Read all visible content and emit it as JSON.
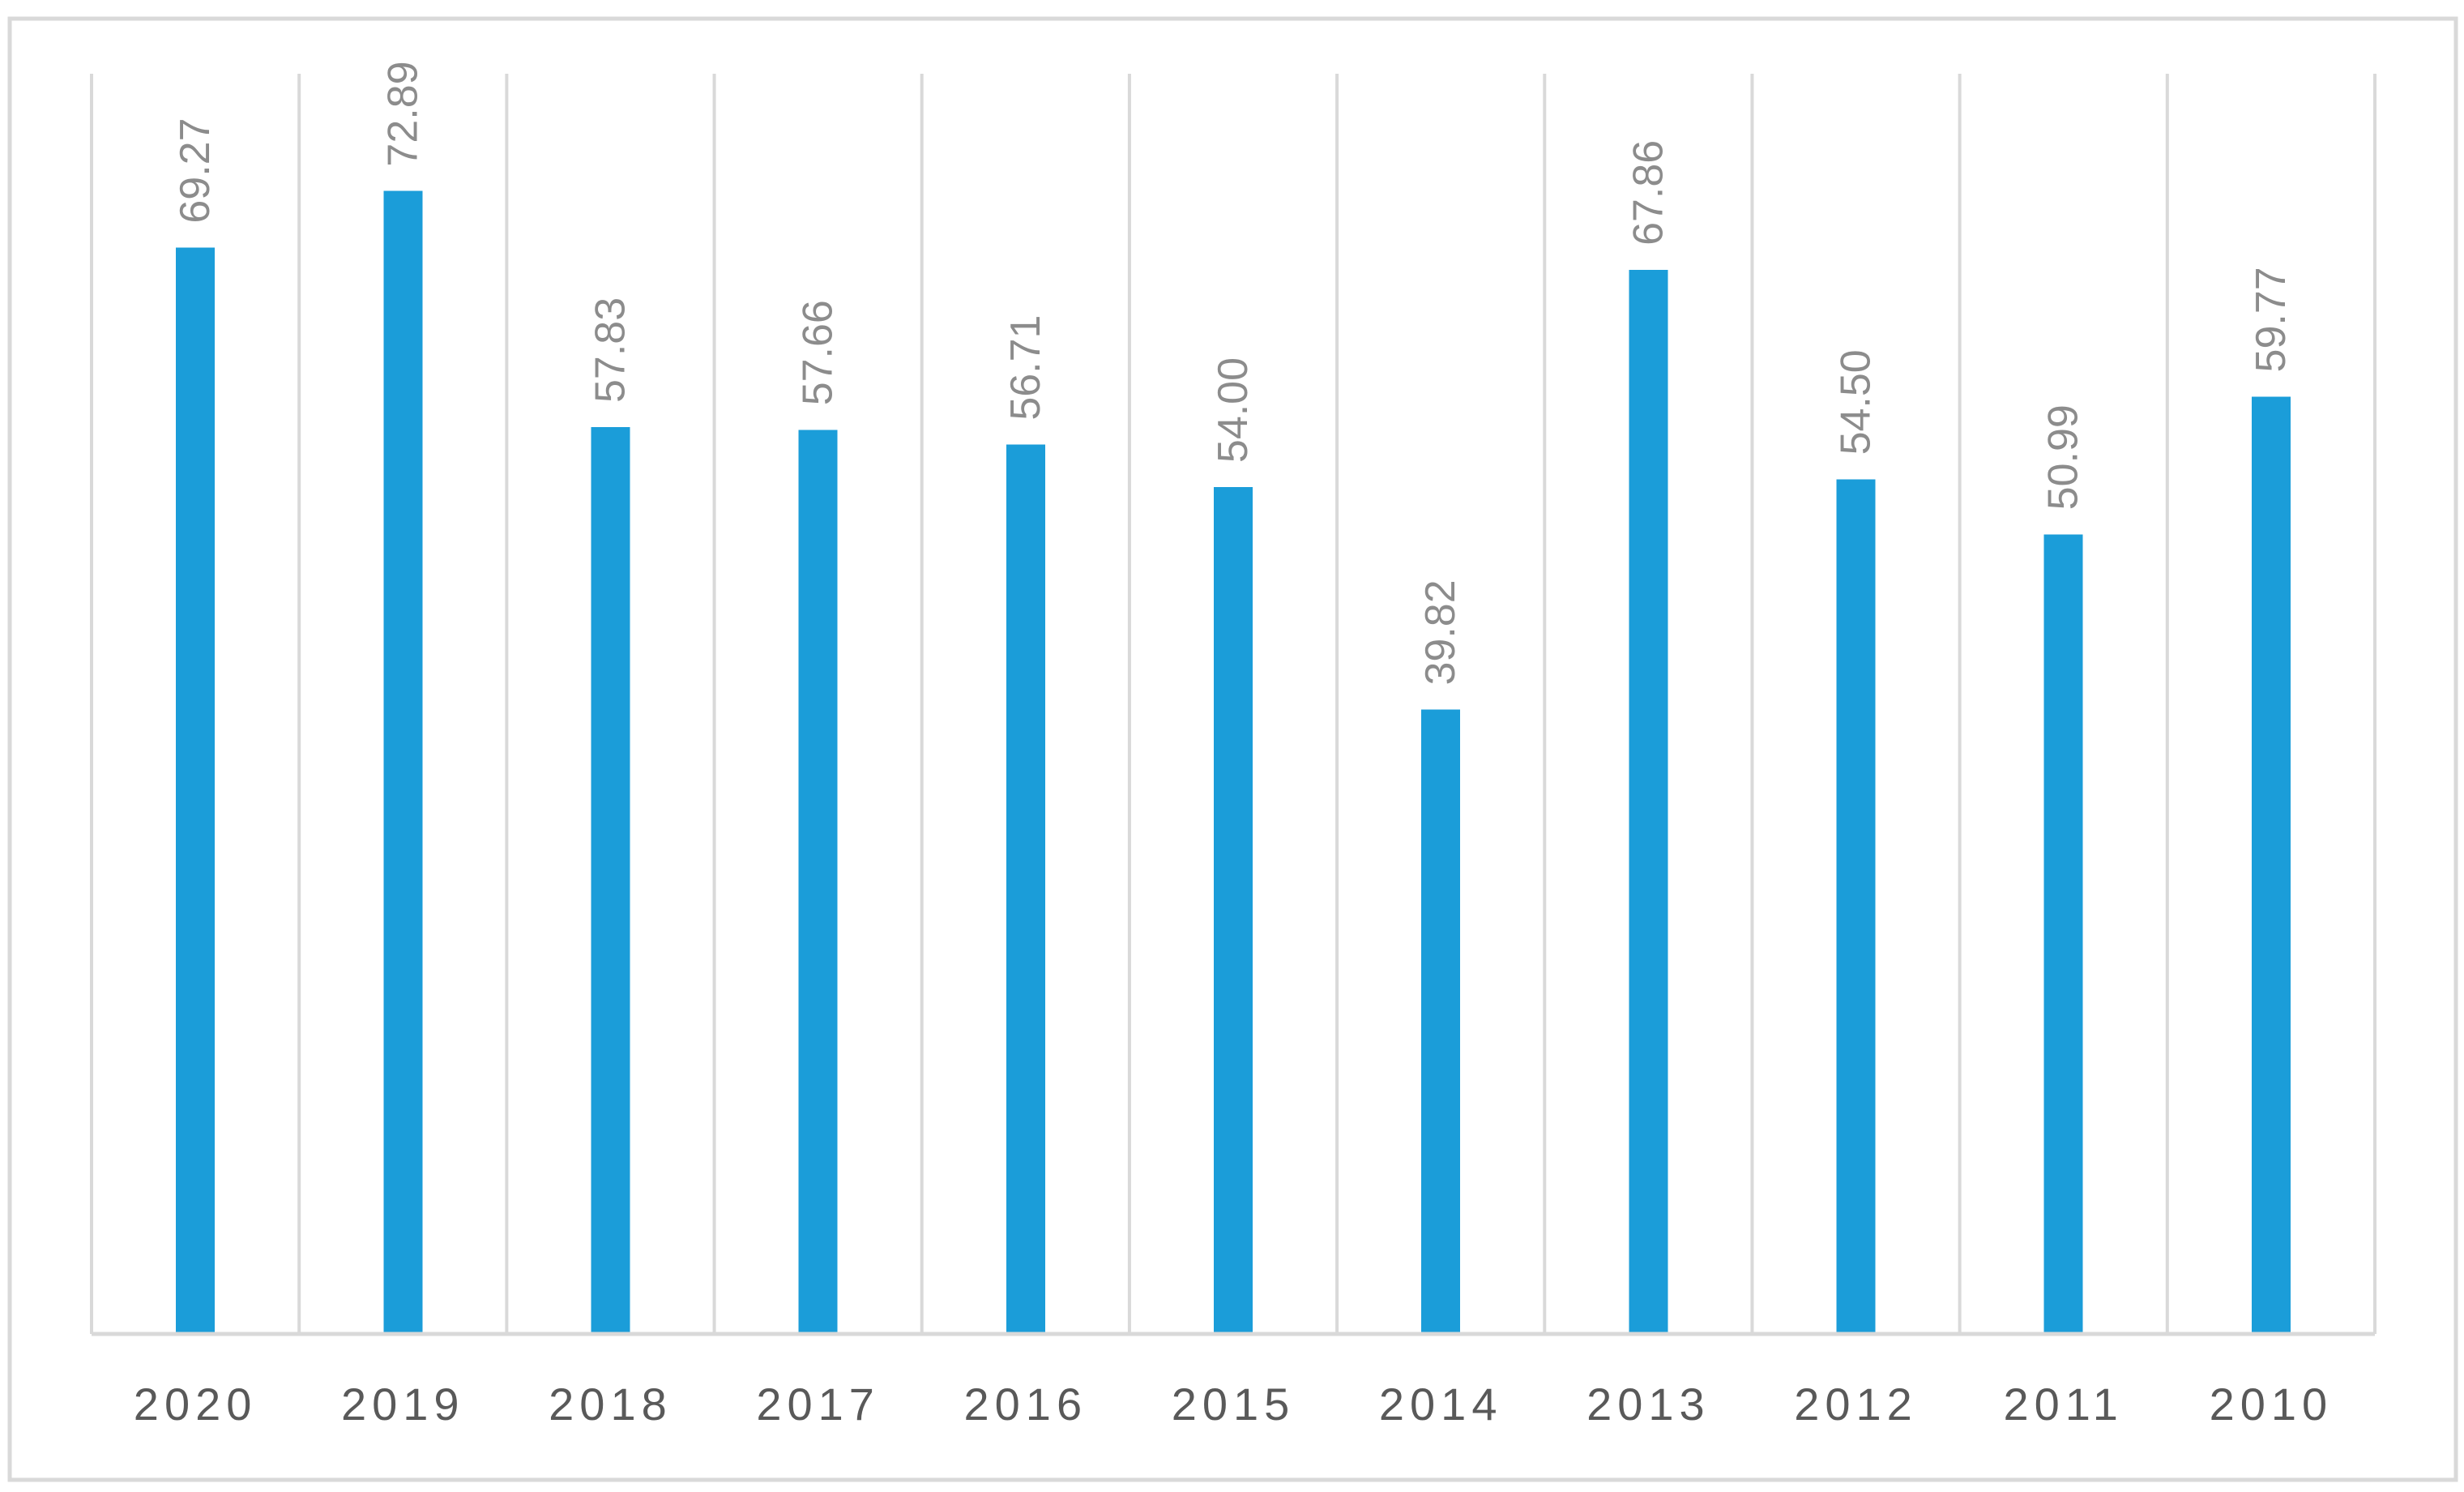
{
  "chart_data": {
    "type": "bar",
    "title": "",
    "xlabel": "",
    "ylabel": "",
    "categories": [
      "2020",
      "2019",
      "2018",
      "2017",
      "2016",
      "2015",
      "2014",
      "2013",
      "2012",
      "2011",
      "2010"
    ],
    "values": [
      69.27,
      72.89,
      57.83,
      57.66,
      56.71,
      54.0,
      39.82,
      67.86,
      54.5,
      50.99,
      59.77
    ],
    "value_labels": [
      "69.27",
      "72.89",
      "57.83",
      "57.66",
      "56.71",
      "54.00",
      "39.82",
      "67.86",
      "54.50",
      "50.99",
      "59.77"
    ],
    "ylim": [
      0,
      80
    ],
    "grid": "vertical category separators",
    "legend": "none",
    "data_labels": "rotated 90°, above bars",
    "colors": {
      "bar": "#1b9dd9",
      "grid": "#d9d9d9",
      "label": "#8c8c8c",
      "tick": "#595959"
    }
  }
}
